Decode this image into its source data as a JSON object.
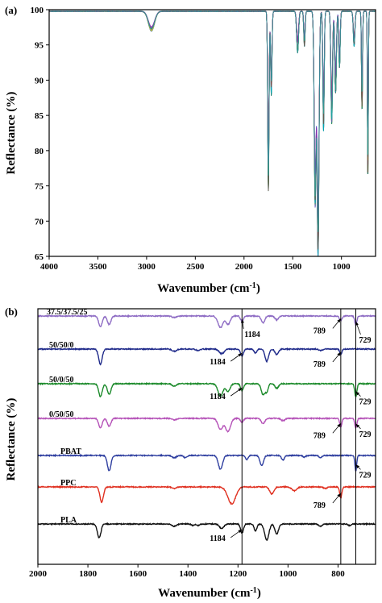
{
  "chart_data": [
    {
      "type": "line",
      "panel_label": "(a)",
      "xlabel": "Wavenumber (cm",
      "xlabel_sup": "-1",
      "xlabel_close": ")",
      "ylabel": "Reflectance (%)",
      "xlim": [
        4000,
        650
      ],
      "ylim": [
        65,
        100
      ],
      "x_ticks": [
        4000,
        3500,
        3000,
        2500,
        2000,
        1500,
        1000
      ],
      "y_ticks": [
        65,
        70,
        75,
        80,
        85,
        90,
        95,
        100
      ],
      "grid": false,
      "series_colors": [
        "#7e57c2",
        "#e53935",
        "#43a047",
        "#1e88e5",
        "#fdd835",
        "#00acc1",
        "#ec407a",
        "#6d4c41",
        "#8e24aa",
        "#26a69a",
        "#5c6bc0",
        "#c0ca33",
        "#d81b60",
        "#3949ab",
        "#00897b",
        "#f4511e"
      ],
      "base_value": 99.8,
      "peaks": [
        {
          "x": 2950,
          "min_depth": 1.6,
          "max_depth": 2.8,
          "width": 45
        },
        {
          "x": 1750,
          "min_depth": 15,
          "max_depth": 25.5,
          "width": 10
        },
        {
          "x": 1720,
          "min_depth": 5,
          "max_depth": 12,
          "width": 10
        },
        {
          "x": 1450,
          "min_depth": 2,
          "max_depth": 6,
          "width": 14
        },
        {
          "x": 1380,
          "min_depth": 2,
          "max_depth": 5,
          "width": 10
        },
        {
          "x": 1270,
          "min_depth": 18,
          "max_depth": 27.5,
          "width": 14
        },
        {
          "x": 1240,
          "min_depth": 22,
          "max_depth": 34.5,
          "width": 14
        },
        {
          "x": 1184,
          "min_depth": 8,
          "max_depth": 17,
          "width": 10
        },
        {
          "x": 1100,
          "min_depth": 8,
          "max_depth": 16,
          "width": 12
        },
        {
          "x": 1060,
          "min_depth": 6,
          "max_depth": 12,
          "width": 12
        },
        {
          "x": 1020,
          "min_depth": 3,
          "max_depth": 8,
          "width": 10
        },
        {
          "x": 870,
          "min_depth": 2,
          "max_depth": 5,
          "width": 12
        },
        {
          "x": 789,
          "min_depth": 5,
          "max_depth": 14,
          "width": 8
        },
        {
          "x": 729,
          "min_depth": 10,
          "max_depth": 23.5,
          "width": 7
        }
      ]
    },
    {
      "type": "line",
      "panel_label": "(b)",
      "xlabel": "Wavenumber (cm",
      "xlabel_sup": "-1",
      "xlabel_close": ")",
      "ylabel": "Reflectance (%)",
      "xlim": [
        2000,
        650
      ],
      "x_ticks": [
        2000,
        1800,
        1600,
        1400,
        1200,
        1000,
        800
      ],
      "grid": false,
      "reference_lines": [
        1184,
        789,
        729
      ],
      "series": [
        {
          "name": "37.5/37.5/25",
          "color": "#8e6cc4",
          "peaks": [
            [
              1750,
              0.7,
              10
            ],
            [
              1715,
              0.55,
              10
            ],
            [
              1455,
              0.1,
              12
            ],
            [
              1270,
              0.75,
              14
            ],
            [
              1240,
              0.55,
              12
            ],
            [
              1184,
              0.35,
              8
            ],
            [
              1100,
              0.45,
              10
            ],
            [
              1045,
              0.25,
              10
            ],
            [
              789,
              0.3,
              7
            ],
            [
              729,
              0.6,
              6
            ]
          ]
        },
        {
          "name": "50/50/0",
          "color": "#1f2a8a",
          "peaks": [
            [
              1750,
              1.0,
              10
            ],
            [
              1455,
              0.15,
              12
            ],
            [
              1360,
              0.1,
              10
            ],
            [
              1265,
              0.3,
              14
            ],
            [
              1184,
              0.45,
              8
            ],
            [
              1130,
              0.25,
              8
            ],
            [
              1085,
              0.8,
              10
            ],
            [
              1045,
              0.35,
              10
            ],
            [
              870,
              0.1,
              10
            ],
            [
              789,
              0.35,
              6
            ]
          ]
        },
        {
          "name": "50/0/50",
          "color": "#1b8a2a",
          "peaks": [
            [
              1750,
              0.85,
              10
            ],
            [
              1715,
              0.7,
              10
            ],
            [
              1455,
              0.15,
              12
            ],
            [
              1270,
              0.8,
              14
            ],
            [
              1240,
              0.5,
              12
            ],
            [
              1184,
              0.45,
              8
            ],
            [
              1100,
              0.7,
              10
            ],
            [
              1085,
              0.5,
              8
            ],
            [
              1045,
              0.3,
              10
            ],
            [
              729,
              0.85,
              6
            ]
          ]
        },
        {
          "name": "0/50/50",
          "color": "#b552b8",
          "peaks": [
            [
              1750,
              0.6,
              10
            ],
            [
              1715,
              0.5,
              10
            ],
            [
              1455,
              0.1,
              12
            ],
            [
              1270,
              0.7,
              14
            ],
            [
              1240,
              0.85,
              14
            ],
            [
              1184,
              0.25,
              8
            ],
            [
              1100,
              0.35,
              10
            ],
            [
              1020,
              0.15,
              10
            ],
            [
              789,
              0.55,
              6
            ],
            [
              729,
              0.6,
              6
            ]
          ]
        },
        {
          "name": "PBAT",
          "color": "#2f3fa0",
          "peaks": [
            [
              1715,
              1.0,
              10
            ],
            [
              1455,
              0.15,
              12
            ],
            [
              1410,
              0.15,
              10
            ],
            [
              1270,
              0.9,
              12
            ],
            [
              1165,
              0.25,
              8
            ],
            [
              1105,
              0.65,
              10
            ],
            [
              1020,
              0.3,
              8
            ],
            [
              935,
              0.1,
              8
            ],
            [
              870,
              0.15,
              8
            ],
            [
              729,
              1.0,
              5
            ]
          ]
        },
        {
          "name": "PPC",
          "color": "#e03020",
          "peaks": [
            [
              1745,
              1.0,
              10
            ],
            [
              1455,
              0.1,
              12
            ],
            [
              1225,
              1.1,
              22
            ],
            [
              1065,
              0.45,
              12
            ],
            [
              975,
              0.25,
              14
            ],
            [
              850,
              0.1,
              10
            ],
            [
              789,
              0.7,
              6
            ]
          ]
        },
        {
          "name": "PLA",
          "color": "#111111",
          "peaks": [
            [
              1755,
              0.9,
              10
            ],
            [
              1455,
              0.15,
              12
            ],
            [
              1380,
              0.1,
              8
            ],
            [
              1360,
              0.1,
              8
            ],
            [
              1265,
              0.3,
              12
            ],
            [
              1184,
              0.6,
              8
            ],
            [
              1130,
              0.45,
              8
            ],
            [
              1085,
              1.05,
              12
            ],
            [
              1045,
              0.65,
              10
            ],
            [
              870,
              0.15,
              10
            ],
            [
              755,
              0.1,
              8
            ]
          ]
        }
      ],
      "annotations": [
        {
          "text": "1184",
          "series": 0,
          "x": 1184
        },
        {
          "text": "1184",
          "series": 1,
          "x": 1184
        },
        {
          "text": "1184",
          "series": 2,
          "x": 1184
        },
        {
          "text": "1184",
          "series": 6,
          "x": 1184
        },
        {
          "text": "789",
          "series": 0,
          "x": 789
        },
        {
          "text": "789",
          "series": 1,
          "x": 789
        },
        {
          "text": "789",
          "series": 3,
          "x": 789
        },
        {
          "text": "789",
          "series": 5,
          "x": 789
        },
        {
          "text": "729",
          "series": 0,
          "x": 729
        },
        {
          "text": "729",
          "series": 2,
          "x": 729
        },
        {
          "text": "729",
          "series": 3,
          "x": 729
        },
        {
          "text": "729",
          "series": 4,
          "x": 729
        }
      ]
    }
  ]
}
